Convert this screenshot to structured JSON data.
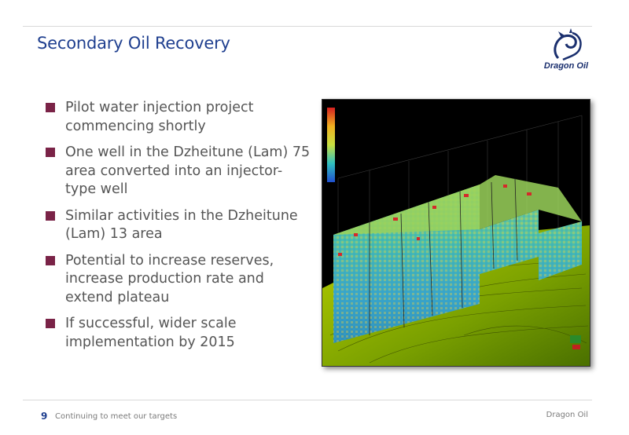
{
  "slide": {
    "title": "Secondary Oil Recovery",
    "page_number": "9",
    "footer_text": "Continuing to meet our targets",
    "footer_brand": "Dragon Oil"
  },
  "logo": {
    "text": "Dragon Oil"
  },
  "bullets": [
    "Pilot water injection project commencing shortly",
    "One well in the Dzheitune (Lam) 75 area converted into an injector-type well",
    "Similar activities in the Dzheitune (Lam) 13 area",
    "Potential to increase reserves, increase production rate and extend plateau",
    "If successful, wider scale implementation by 2015"
  ],
  "colors": {
    "title": "#1f3f8f",
    "bullet_marker": "#7a2347"
  }
}
